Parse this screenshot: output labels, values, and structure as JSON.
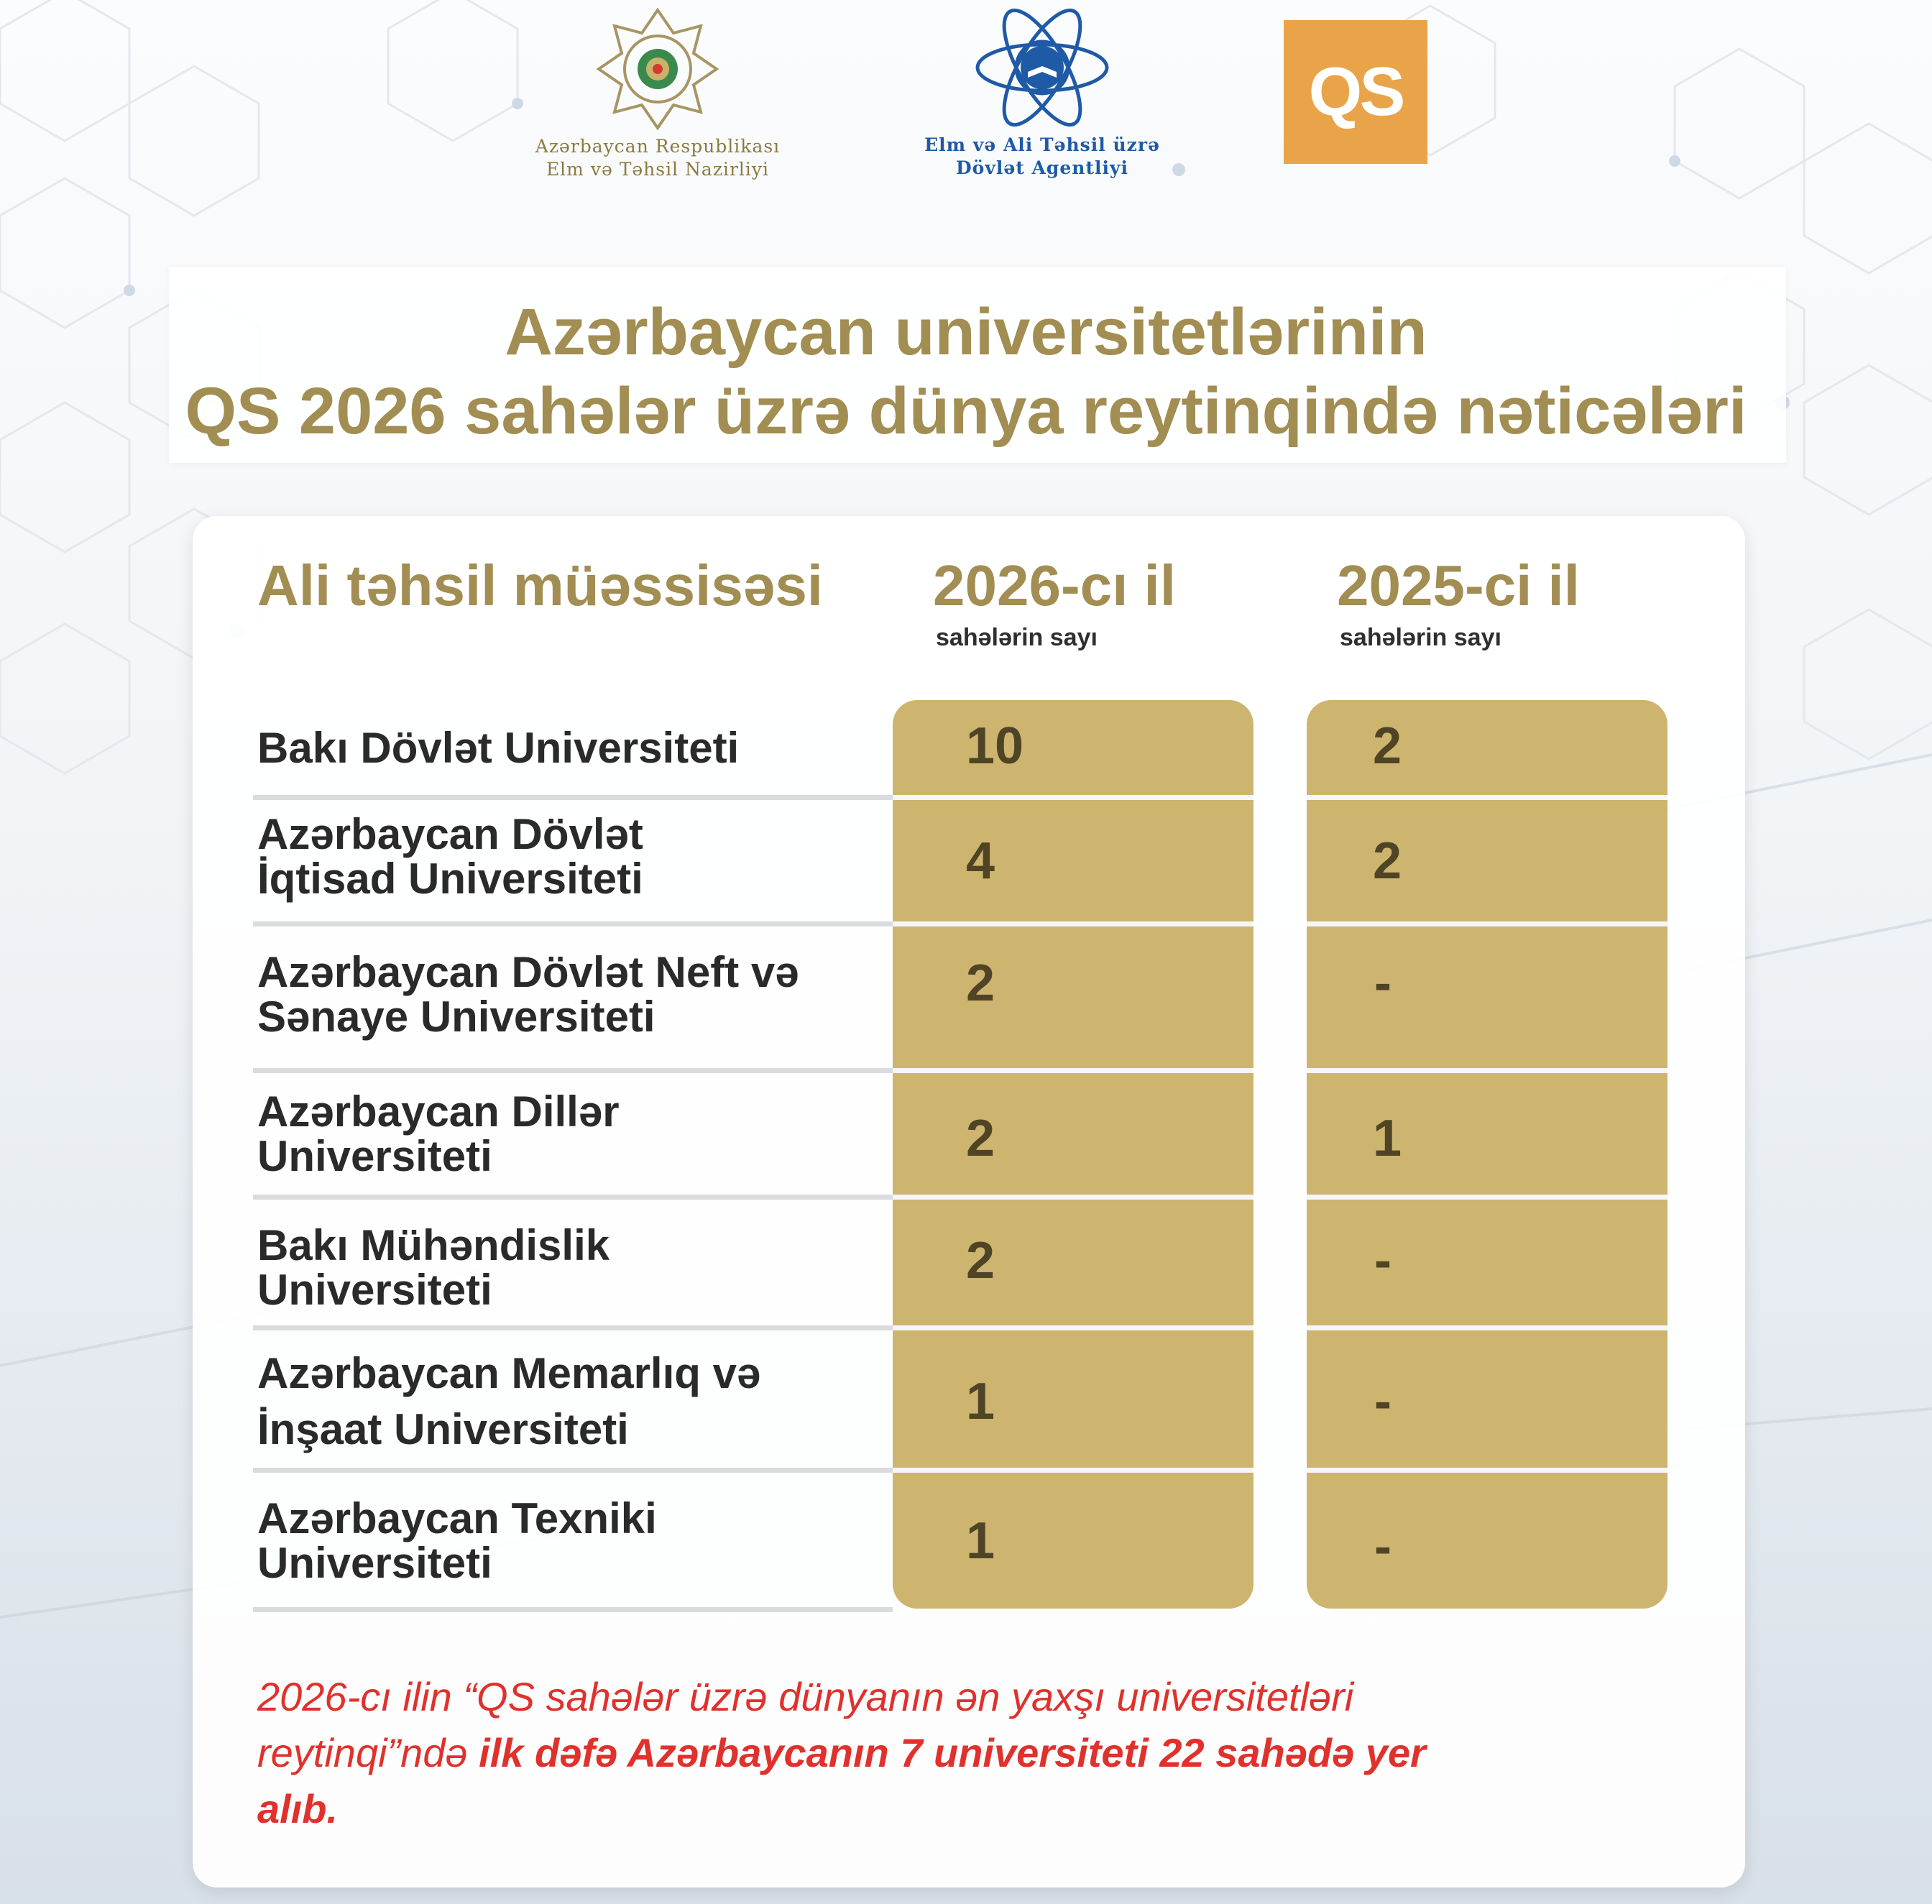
{
  "logos": {
    "ministry": {
      "line1": "Azərbaycan Respublikası",
      "line2": "Elm və Təhsil Nazirliyi"
    },
    "agency": {
      "line1": "Elm və Ali Təhsil üzrə",
      "line2": "Dövlət Agentliyi"
    },
    "qs": "QS"
  },
  "title": {
    "line1": "Azərbaycan universitetlərinin",
    "line2": "QS 2026 sahələr üzrə dünya  reytinqində nəticələri"
  },
  "table": {
    "col_institution": "Ali təhsil müəssisəsi",
    "col_2026": "2026-cı il",
    "col_2026_sub": "sahələrin sayı",
    "col_2025": "2025-ci il",
    "col_2025_sub": "sahələrin sayı",
    "rows": [
      {
        "name": "Bakı Dövlət Universiteti",
        "y2026": "10",
        "y2025": "2"
      },
      {
        "name": "Azərbaycan Dövlət İqtisad Universiteti",
        "y2026": "4",
        "y2025": "2"
      },
      {
        "name": "Azərbaycan Dövlət Neft və Sənaye Universiteti",
        "y2026": "2",
        "y2025": "-"
      },
      {
        "name": "Azərbaycan Dillər Universiteti",
        "y2026": "2",
        "y2025": "1"
      },
      {
        "name": "Bakı Mühəndislik Universiteti",
        "y2026": "2",
        "y2025": "-"
      },
      {
        "name": "Azərbaycan Memarlıq və İnşaat Universiteti",
        "y2026": "1",
        "y2025": "-"
      },
      {
        "name": "Azərbaycan Texniki Universiteti",
        "y2026": "1",
        "y2025": "-"
      }
    ]
  },
  "footnote": {
    "part1": "2026-cı ilin “QS sahələr üzrə dünyanın ən yaxşı universitetləri reytinqi”ndə ",
    "part2": "ilk dəfə Azərbaycanın 7 universiteti 22 sahədə yer alıb."
  },
  "colors": {
    "gold": "#a28d52",
    "cell_gold": "#cdb56f",
    "accent_red": "#e0312c",
    "qs_orange": "#e9a449",
    "agency_blue": "#1f5aa6"
  }
}
